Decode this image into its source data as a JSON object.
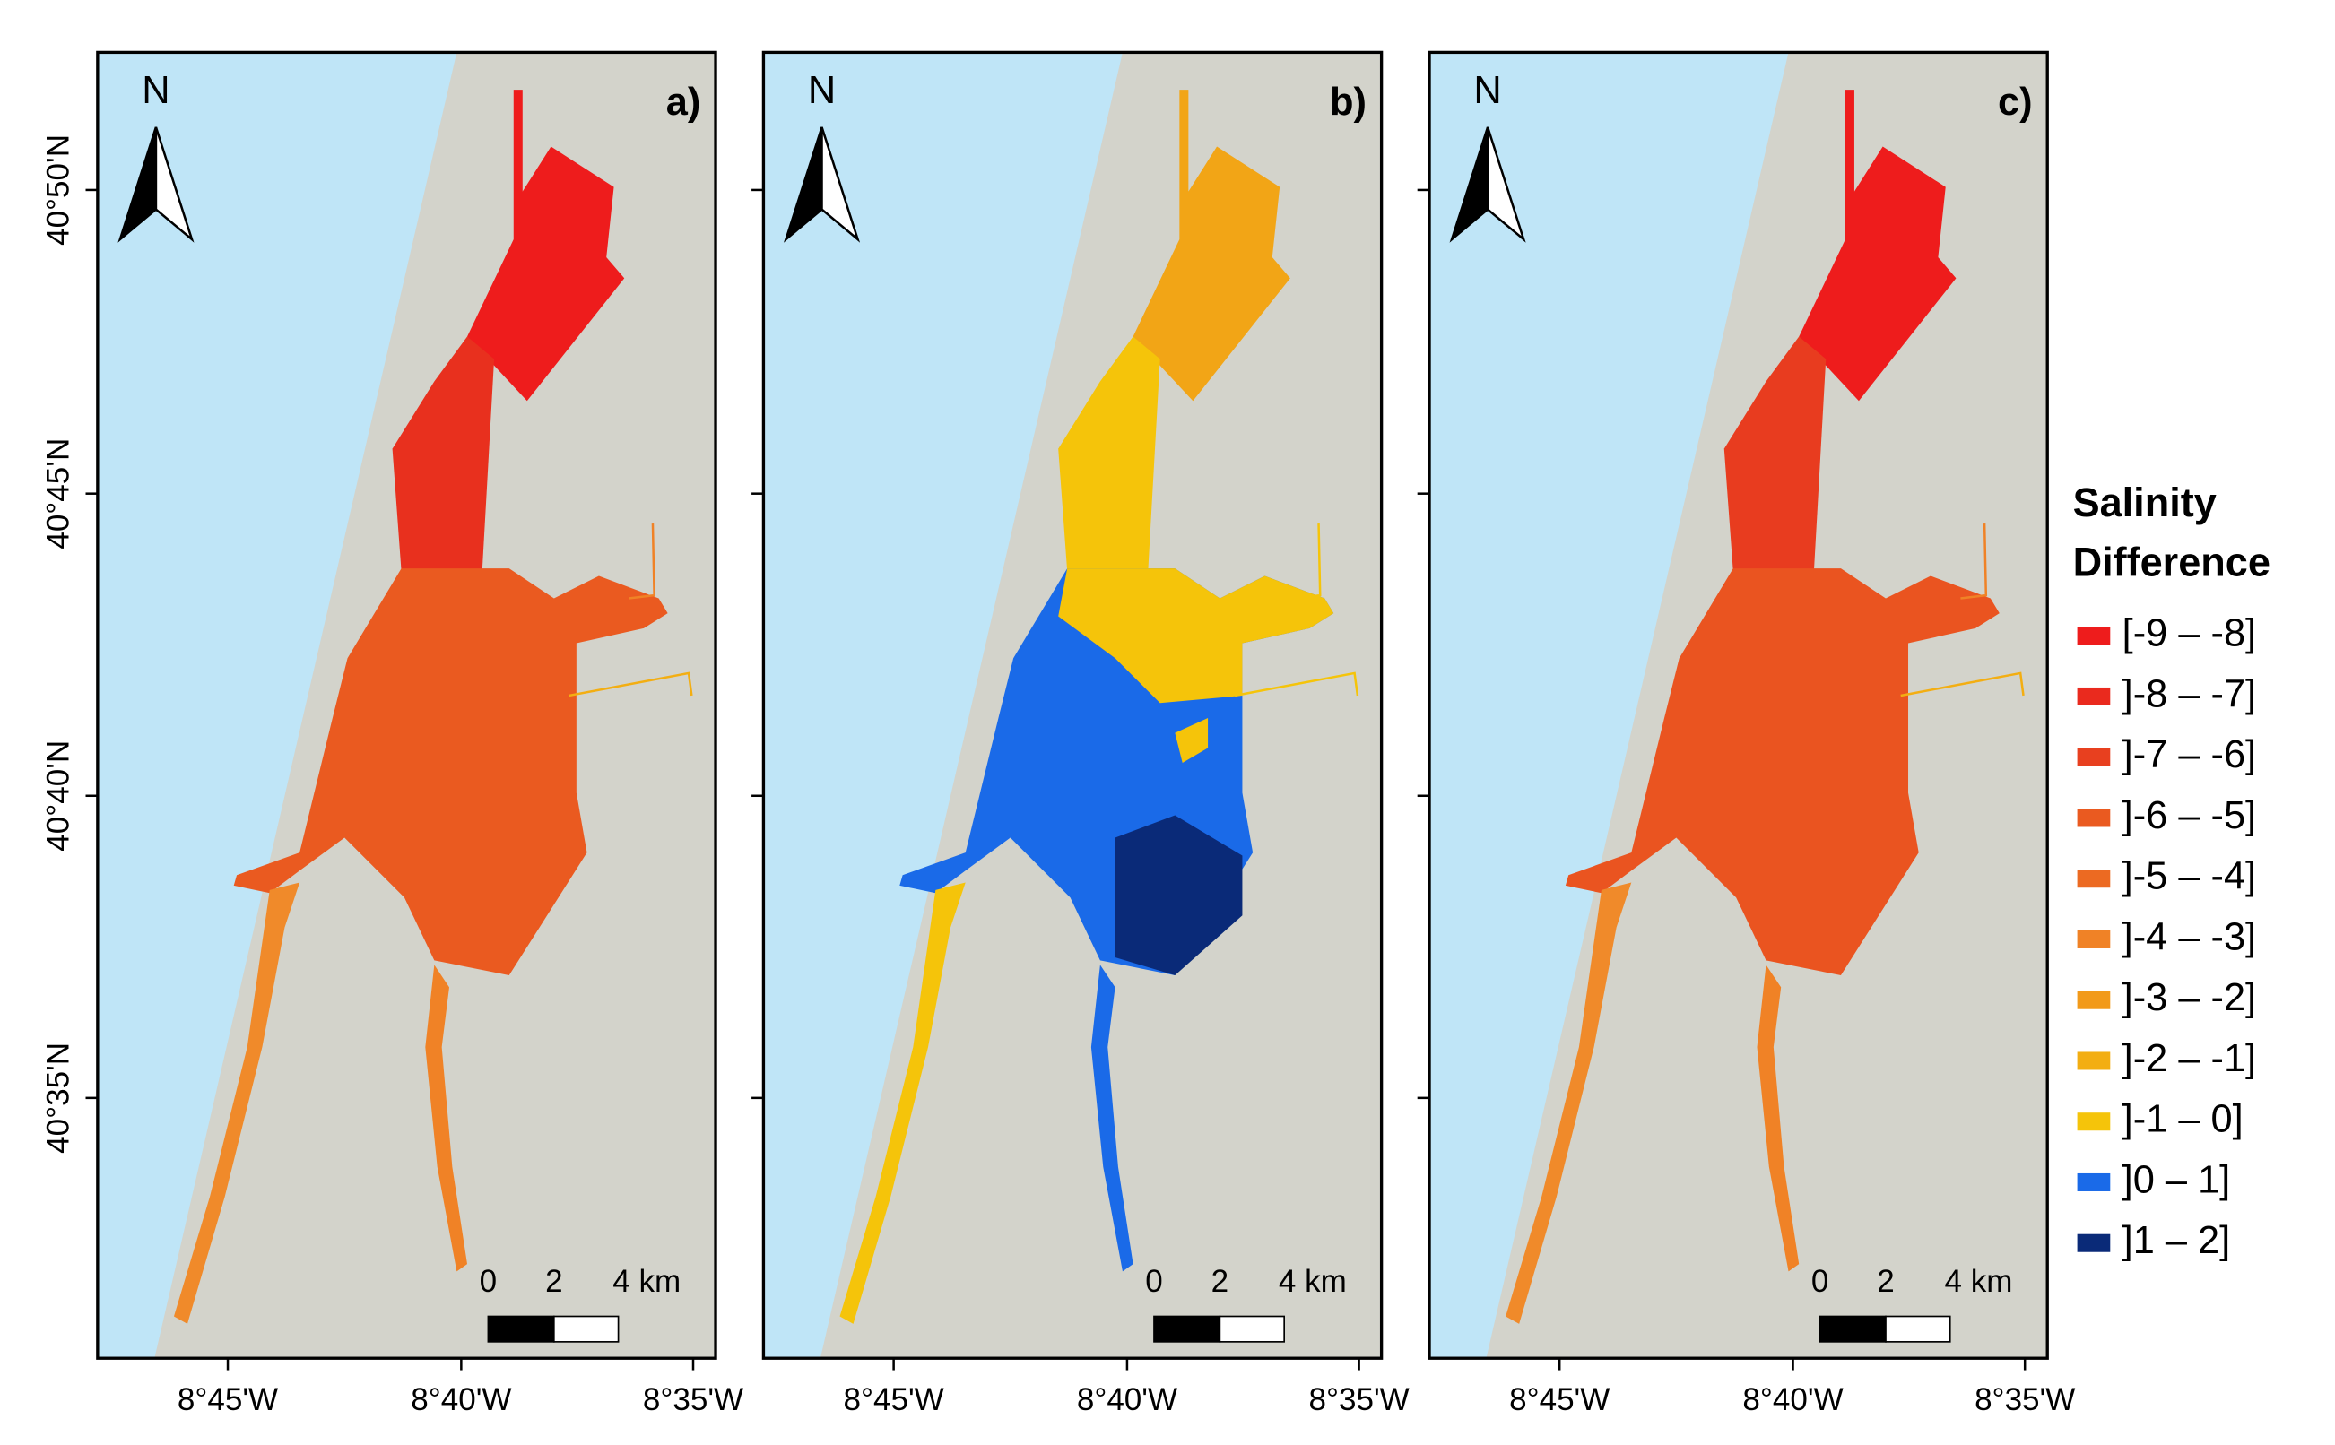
{
  "panels": [
    {
      "label": "a)"
    },
    {
      "label": "b)"
    },
    {
      "label": "c)"
    }
  ],
  "north": "N",
  "scale_labels": [
    "0",
    "2",
    "4 km"
  ],
  "lat_labels": [
    "40°50'N",
    "40°45'N",
    "40°40'N",
    "40°35'N"
  ],
  "lon_labels": [
    "8°45'W",
    "8°40'W",
    "8°35'W"
  ],
  "legend": {
    "title": [
      "Salinity",
      "Difference"
    ],
    "items": [
      {
        "label": "[-9 – -8]",
        "color": "#ee1c1c"
      },
      {
        "label": "]-8 – -7]",
        "color": "#ea2a1e"
      },
      {
        "label": "]-7 – -6]",
        "color": "#e8401f"
      },
      {
        "label": "]-6 – -5]",
        "color": "#ea5a20"
      },
      {
        "label": "]-5 – -4]",
        "color": "#ec6a22"
      },
      {
        "label": "]-4 – -3]",
        "color": "#f08226"
      },
      {
        "label": "]-3 – -2]",
        "color": "#f29a1a"
      },
      {
        "label": "]-2 – -1]",
        "color": "#f3ae12"
      },
      {
        "label": "]-1 – 0]",
        "color": "#f5c40a"
      },
      {
        "label": "]0 – 1]",
        "color": "#1a6ae8"
      },
      {
        "label": "]1 – 2]",
        "color": "#0a2a78"
      }
    ]
  }
}
